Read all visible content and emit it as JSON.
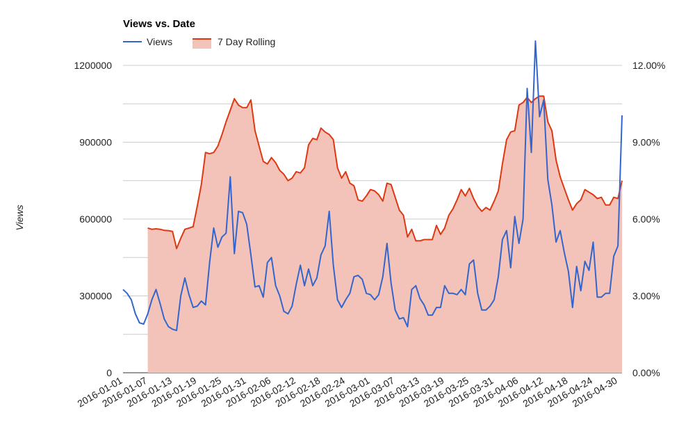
{
  "chart_data": {
    "type": "line",
    "title": "Views vs. Date",
    "ylabel": "Views",
    "ylim": [
      0,
      1200000
    ],
    "y2lim": [
      0.0,
      12.0
    ],
    "yticks": [
      0,
      300000,
      600000,
      900000,
      1200000
    ],
    "yticks_labels": [
      "0",
      "300000",
      "600000",
      "900000",
      "1200000"
    ],
    "y2ticks_labels": [
      "0.00%",
      "3.00%",
      "6.00%",
      "9.00%",
      "12.00%"
    ],
    "x_tick_labels": [
      "2016-01-01",
      "2016-01-07",
      "2016-01-13",
      "2016-01-19",
      "2016-01-25",
      "2016-01-31",
      "2016-02-06",
      "2016-02-12",
      "2016-02-18",
      "2016-02-24",
      "2016-03-01",
      "2016-03-07",
      "2016-03-13",
      "2016-03-19",
      "2016-03-25",
      "2016-03-31",
      "2016-04-06",
      "2016-04-12",
      "2016-04-18",
      "2016-04-24",
      "2016-04-30"
    ],
    "x_start": "2016-01-01",
    "x_end": "2016-04-30",
    "legend": [
      "Views",
      "7 Day Rolling"
    ],
    "colors": {
      "views": "#3366cc",
      "rolling_line": "#dc3912",
      "rolling_fill": "#f3c2b8"
    },
    "series": [
      {
        "name": "Views",
        "axis": "left",
        "style": "line",
        "values": [
          325000,
          310000,
          285000,
          230000,
          195000,
          190000,
          230000,
          285000,
          325000,
          270000,
          210000,
          180000,
          170000,
          165000,
          300000,
          370000,
          305000,
          255000,
          260000,
          280000,
          265000,
          430000,
          565000,
          490000,
          530000,
          545000,
          765000,
          465000,
          630000,
          625000,
          580000,
          460000,
          335000,
          340000,
          295000,
          430000,
          450000,
          340000,
          300000,
          240000,
          230000,
          260000,
          345000,
          420000,
          340000,
          405000,
          340000,
          370000,
          460000,
          495000,
          630000,
          420000,
          285000,
          255000,
          285000,
          310000,
          375000,
          380000,
          365000,
          310000,
          305000,
          285000,
          305000,
          375000,
          505000,
          350000,
          245000,
          210000,
          215000,
          180000,
          325000,
          340000,
          290000,
          265000,
          225000,
          225000,
          255000,
          255000,
          340000,
          310000,
          310000,
          305000,
          325000,
          305000,
          425000,
          440000,
          310000,
          245000,
          245000,
          260000,
          285000,
          375000,
          520000,
          555000,
          410000,
          610000,
          505000,
          600000,
          1110000,
          860000,
          1295000,
          1000000,
          1065000,
          755000,
          655000,
          510000,
          555000,
          470000,
          395000,
          255000,
          415000,
          320000,
          435000,
          400000,
          510000,
          295000,
          295000,
          310000,
          310000,
          455000,
          495000,
          1005000
        ]
      },
      {
        "name": "7 Day Rolling",
        "axis": "right",
        "style": "area",
        "start_index": 6,
        "values": [
          5.65,
          5.6,
          5.62,
          5.6,
          5.56,
          5.55,
          5.52,
          4.85,
          5.25,
          5.6,
          5.65,
          5.7,
          6.5,
          7.35,
          8.6,
          8.55,
          8.6,
          8.85,
          9.3,
          9.8,
          10.25,
          10.7,
          10.45,
          10.35,
          10.35,
          10.65,
          9.45,
          8.85,
          8.25,
          8.15,
          8.4,
          8.2,
          7.9,
          7.75,
          7.5,
          7.6,
          7.85,
          7.8,
          8.0,
          8.9,
          9.15,
          9.1,
          9.55,
          9.4,
          9.3,
          9.1,
          8.0,
          7.6,
          7.85,
          7.4,
          7.3,
          6.75,
          6.7,
          6.9,
          7.15,
          7.1,
          6.95,
          6.7,
          7.4,
          7.35,
          6.85,
          6.35,
          6.15,
          5.3,
          5.6,
          5.15,
          5.15,
          5.2,
          5.2,
          5.2,
          5.75,
          5.4,
          5.65,
          6.15,
          6.4,
          6.75,
          7.15,
          6.9,
          7.2,
          6.8,
          6.5,
          6.3,
          6.45,
          6.35,
          6.7,
          7.1,
          8.15,
          9.1,
          9.4,
          9.45,
          10.45,
          10.55,
          10.75,
          10.55,
          10.7,
          10.8,
          10.8,
          9.8,
          9.45,
          8.3,
          7.65,
          7.2,
          6.75,
          6.35,
          6.6,
          6.75,
          7.15,
          7.05,
          6.95,
          6.8,
          6.85,
          6.55,
          6.55,
          6.85,
          6.8,
          7.5
        ]
      }
    ]
  }
}
